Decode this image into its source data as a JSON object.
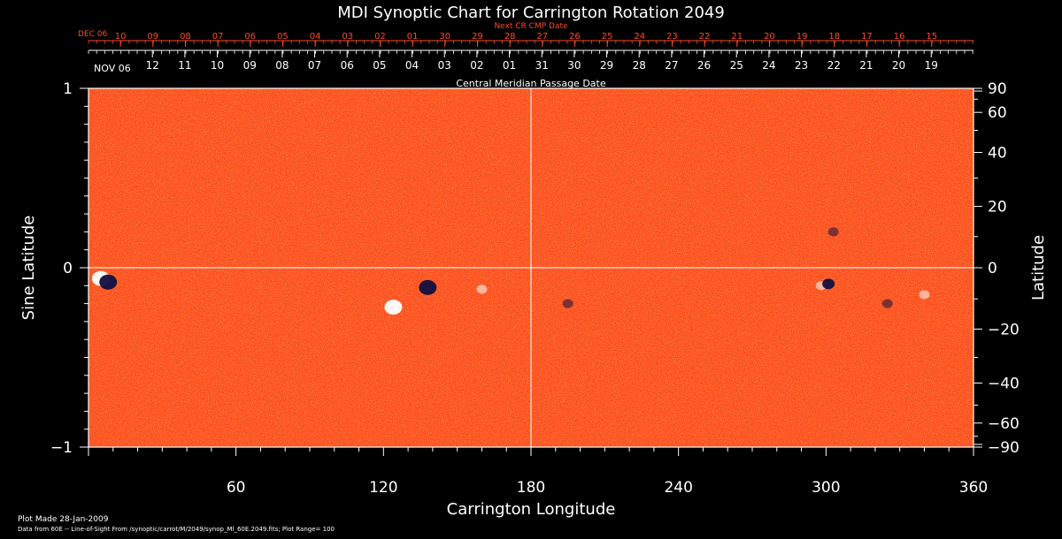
{
  "chart_data": {
    "type": "heatmap",
    "title": "MDI Synoptic Chart for Carrington Rotation 2049",
    "xlabel": "Carrington Longitude",
    "ylabel_left": "Sine Latitude",
    "ylabel_right": "Latitude",
    "xlim": [
      0,
      360
    ],
    "ylim": [
      -1,
      1
    ],
    "x_ticks": [
      60,
      120,
      180,
      240,
      300,
      360
    ],
    "y_ticks_left": [
      {
        "value": 1,
        "label": "1"
      },
      {
        "value": 0,
        "label": "0"
      },
      {
        "value": -1,
        "label": "−1"
      }
    ],
    "y_ticks_right": [
      {
        "deg": 90,
        "label": "90"
      },
      {
        "deg": 60,
        "label": "60"
      },
      {
        "deg": 40,
        "label": "40"
      },
      {
        "deg": 20,
        "label": "20"
      },
      {
        "deg": 0,
        "label": "0"
      },
      {
        "deg": -20,
        "label": "−20"
      },
      {
        "deg": -40,
        "label": "−40"
      },
      {
        "deg": -60,
        "label": "−60"
      },
      {
        "deg": -90,
        "label": "−90"
      }
    ],
    "central_meridian_label": "Central Meridian Passage Date",
    "nov_axis": {
      "month_label": "NOV 06",
      "days": [
        "12",
        "11",
        "10",
        "09",
        "08",
        "07",
        "06",
        "05",
        "04",
        "03",
        "02",
        "01",
        "31",
        "30",
        "29",
        "28",
        "27",
        "26",
        "25",
        "24",
        "23",
        "22",
        "21",
        "20",
        "19"
      ],
      "first_longitude": 26,
      "step": -13.2
    },
    "next_axis": {
      "label": "Next CR CMP Date",
      "month_label": "DEC 06",
      "days": [
        "10",
        "09",
        "08",
        "07",
        "06",
        "05",
        "04",
        "03",
        "02",
        "01",
        "30",
        "29",
        "28",
        "27",
        "26",
        "25",
        "24",
        "23",
        "22",
        "21",
        "20",
        "19",
        "18",
        "17",
        "16",
        "15"
      ],
      "first_longitude": 13,
      "step": -13.2
    },
    "grid_lines": {
      "longitude": 180,
      "sine_latitude": 0
    },
    "active_regions": [
      {
        "lon": 5,
        "sinlat": -0.06,
        "polarity": "positive",
        "strength": "strong"
      },
      {
        "lon": 8,
        "sinlat": -0.08,
        "polarity": "negative",
        "strength": "strong"
      },
      {
        "lon": 124,
        "sinlat": -0.22,
        "polarity": "positive",
        "strength": "strong"
      },
      {
        "lon": 138,
        "sinlat": -0.11,
        "polarity": "negative",
        "strength": "strong"
      },
      {
        "lon": 160,
        "sinlat": -0.12,
        "polarity": "positive",
        "strength": "weak"
      },
      {
        "lon": 195,
        "sinlat": -0.2,
        "polarity": "negative",
        "strength": "weak"
      },
      {
        "lon": 298,
        "sinlat": -0.1,
        "polarity": "positive",
        "strength": "weak"
      },
      {
        "lon": 301,
        "sinlat": -0.09,
        "polarity": "negative",
        "strength": "medium"
      },
      {
        "lon": 340,
        "sinlat": -0.15,
        "polarity": "positive",
        "strength": "weak"
      },
      {
        "lon": 325,
        "sinlat": -0.2,
        "polarity": "negative",
        "strength": "weak"
      },
      {
        "lon": 303,
        "sinlat": 0.2,
        "polarity": "negative",
        "strength": "weak"
      }
    ],
    "colors": {
      "background": "#ff4a1a",
      "positive": "#ffffff",
      "negative": "#101040",
      "frame": "#ffffff",
      "axis_text_red": "#ff4a2a"
    }
  },
  "footer": {
    "plot_made": "Plot Made 28-Jan-2009",
    "data_source": "Data from 60E -- Line-of-Sight From /synoptic/carrot/M/2049/synop_Ml_60E.2049.fits; Plot Range= 100"
  }
}
